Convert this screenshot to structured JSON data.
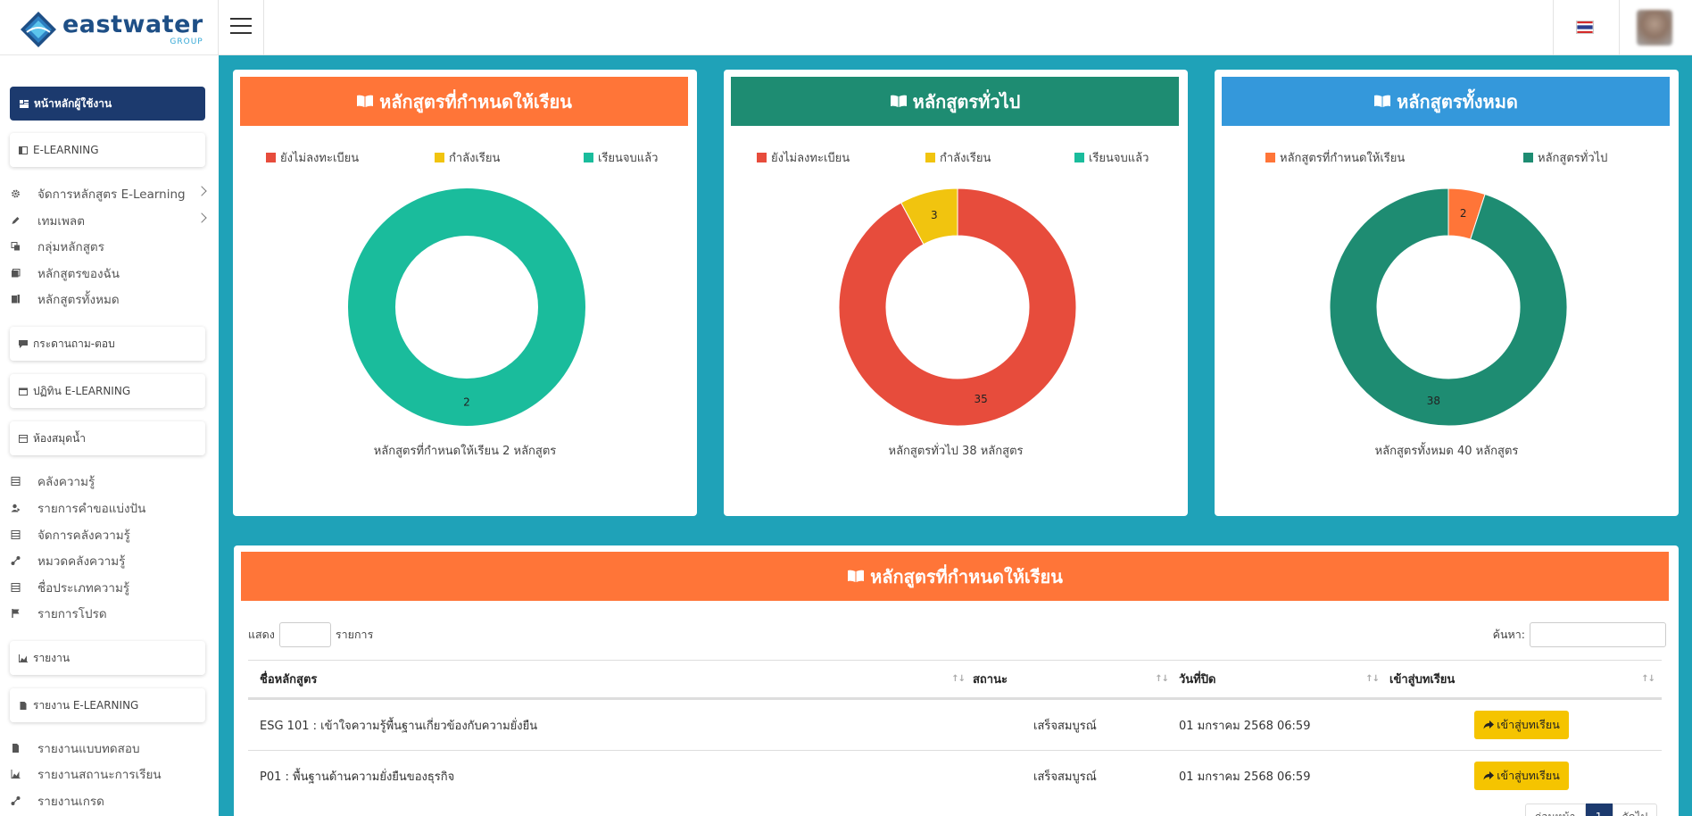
{
  "header": {
    "logo_name": "eastwater",
    "logo_sub": "GROUP",
    "icons": {
      "menu": "hamburger-icon",
      "language": "thai-flag-icon",
      "user": "avatar"
    }
  },
  "sidebar": {
    "home": "หน้าหลักผู้ใช้งาน",
    "elearning": {
      "title": "E-LEARNING",
      "items": [
        {
          "label": "จัดการหลักสูตร E-Learning",
          "icon": "gear-icon"
        },
        {
          "label": "เทมเพลต",
          "icon": "pencil-icon"
        },
        {
          "label": "กลุ่มหลักสูตร",
          "icon": "copy-icon"
        },
        {
          "label": "หลักสูตรของฉัน",
          "icon": "book-icon"
        },
        {
          "label": "หลักสูตรทั้งหมด",
          "icon": "books-icon"
        }
      ]
    },
    "qa": "กระดานถาม-ตอบ",
    "calendar": "ปฏิทิน E-LEARNING",
    "library": {
      "title": "ห้องสมุดน้ำ",
      "items": [
        {
          "label": "คลังความรู้",
          "icon": "table-icon"
        },
        {
          "label": "รายการคำขอแบ่งปัน",
          "icon": "user-share-icon"
        },
        {
          "label": "จัดการคลังความรู้",
          "icon": "table-icon"
        },
        {
          "label": "หมวดคลังความรู้",
          "icon": "nodes-icon"
        },
        {
          "label": "ชื่อประเภทความรู้",
          "icon": "table-icon"
        },
        {
          "label": "รายการโปรด",
          "icon": "flag-icon"
        }
      ]
    },
    "reports": "รายงาน",
    "elearning_reports": {
      "title": "รายงาน E-LEARNING",
      "items": [
        {
          "label": "รายงานแบบทดสอบ",
          "icon": "document-icon"
        },
        {
          "label": "รายงานสถานะการเรียน",
          "icon": "chart-icon"
        },
        {
          "label": "รายงานเกรด",
          "icon": "nodes-icon"
        }
      ]
    }
  },
  "cards": [
    {
      "title": "หลักสูตรที่กำหนดให้เรียน",
      "header_color": "#ff7538",
      "legend": [
        {
          "label": "ยังไม่ลงทะเบียน",
          "color": "#e74c3c"
        },
        {
          "label": "กำลังเรียน",
          "color": "#f1c40f"
        },
        {
          "label": "เรียนจบแล้ว",
          "color": "#1abc9c"
        }
      ],
      "caption": "หลักสูตรที่กำหนดให้เรียน 2 หลักสูตร"
    },
    {
      "title": "หลักสูตรทั่วไป",
      "header_color": "#1e8c72",
      "legend": [
        {
          "label": "ยังไม่ลงทะเบียน",
          "color": "#e74c3c"
        },
        {
          "label": "กำลังเรียน",
          "color": "#f1c40f"
        },
        {
          "label": "เรียนจบแล้ว",
          "color": "#1abc9c"
        }
      ],
      "caption": "หลักสูตรทั่วไป 38 หลักสูตร"
    },
    {
      "title": "หลักสูตรทั้งหมด",
      "header_color": "#3498db",
      "legend": [
        {
          "label": "หลักสูตรที่กำหนดให้เรียน",
          "color": "#ff7538"
        },
        {
          "label": "หลักสูตรทั่วไป",
          "color": "#1e8c72"
        }
      ],
      "caption": "หลักสูตรทั้งหมด 40 หลักสูตร"
    }
  ],
  "chart_data": [
    {
      "type": "pie",
      "variant": "donut",
      "title": "หลักสูตรที่กำหนดให้เรียน",
      "categories": [
        "ยังไม่ลงทะเบียน",
        "กำลังเรียน",
        "เรียนจบแล้ว"
      ],
      "values": [
        0,
        0,
        2
      ],
      "colors": [
        "#e74c3c",
        "#f1c40f",
        "#1abc9c"
      ],
      "legend": "top"
    },
    {
      "type": "pie",
      "variant": "donut",
      "title": "หลักสูตรทั่วไป",
      "categories": [
        "ยังไม่ลงทะเบียน",
        "กำลังเรียน",
        "เรียนจบแล้ว"
      ],
      "values": [
        35,
        3,
        0
      ],
      "colors": [
        "#e74c3c",
        "#f1c40f",
        "#1abc9c"
      ],
      "legend": "top"
    },
    {
      "type": "pie",
      "variant": "donut",
      "title": "หลักสูตรทั้งหมด",
      "categories": [
        "หลักสูตรที่กำหนดให้เรียน",
        "หลักสูตรทั่วไป"
      ],
      "values": [
        2,
        38
      ],
      "colors": [
        "#ff7538",
        "#1e8c72"
      ],
      "legend": "top"
    }
  ],
  "table": {
    "title": "หลักสูตรที่กำหนดให้เรียน",
    "show_label": "แสดง",
    "show_value": "",
    "rows_label": "รายการ",
    "search_label": "ค้นหา:",
    "search_value": "",
    "columns": [
      "ชื่อหลักสูตร",
      "สถานะ",
      "วันที่ปิด",
      "เข้าสู่บทเรียน"
    ],
    "rows": [
      {
        "name": "ESG 101 : เข้าใจความรู้พื้นฐานเกี่ยวข้องกับความยั่งยืน",
        "status": "เสร็จสมบูรณ์",
        "close_date": "01 มกราคม 2568 06:59",
        "action": "เข้าสู่บทเรียน"
      },
      {
        "name": "P01 : พื้นฐานด้านความยั่งยืนของธุรกิจ",
        "status": "เสร็จสมบูรณ์",
        "close_date": "01 มกราคม 2568 06:59",
        "action": "เข้าสู่บทเรียน"
      }
    ],
    "pager": {
      "prev": "ก่อนหน้า",
      "page": "1",
      "next": "ถัดไป"
    }
  }
}
